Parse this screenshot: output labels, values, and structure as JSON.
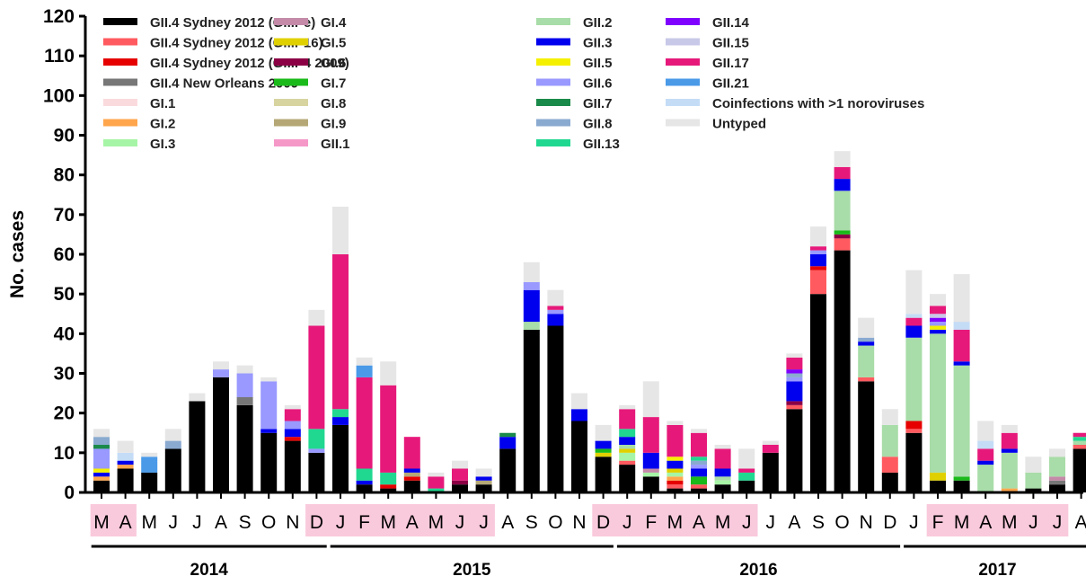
{
  "chart_data": {
    "type": "bar",
    "stacked": true,
    "ylabel": "No. cases",
    "ylim": [
      0,
      120
    ],
    "yticks": [
      0,
      10,
      20,
      30,
      40,
      50,
      60,
      70,
      80,
      90,
      100,
      110,
      120
    ],
    "legend_placement": "top-left",
    "categories": [
      "M",
      "A",
      "M",
      "J",
      "J",
      "A",
      "S",
      "O",
      "N",
      "D",
      "J",
      "F",
      "M",
      "A",
      "M",
      "J",
      "J",
      "A",
      "S",
      "O",
      "N",
      "D",
      "J",
      "F",
      "M",
      "A",
      "M",
      "J",
      "J",
      "A",
      "S",
      "O",
      "N",
      "D",
      "J",
      "F",
      "M",
      "A",
      "M",
      "J",
      "J",
      "A"
    ],
    "years": [
      {
        "label": "2014",
        "from": 0,
        "to": 9
      },
      {
        "label": "2015",
        "from": 10,
        "to": 21
      },
      {
        "label": "2016",
        "from": 22,
        "to": 33
      },
      {
        "label": "2017",
        "from": 34,
        "to": 41
      }
    ],
    "highlight_ranges": [
      [
        0,
        1
      ],
      [
        9,
        16
      ],
      [
        21,
        27
      ],
      [
        35,
        40
      ]
    ],
    "highlight_color": "#f9c9dc",
    "series": [
      {
        "name": "GII.4 Sydney 2012 (GII.Pe)",
        "color": "#000000",
        "values": [
          3,
          6,
          5,
          11,
          23,
          29,
          22,
          15,
          13,
          10,
          17,
          2,
          1,
          3,
          0,
          2,
          2,
          11,
          41,
          42,
          18,
          9,
          7,
          4,
          1,
          1,
          2,
          3,
          10,
          21,
          50,
          61,
          28,
          5,
          15,
          3,
          3,
          0,
          0,
          1,
          2,
          11
        ]
      },
      {
        "name": "GII.4 Sydney 2012 (GII.P16)",
        "color": "#ff5a5f",
        "values": [
          0,
          0,
          0,
          0,
          0,
          0,
          0,
          0,
          0,
          0,
          0,
          0,
          0,
          0,
          0,
          0,
          0,
          0,
          0,
          0,
          0,
          0,
          1,
          0,
          1,
          1,
          0,
          0,
          0,
          1,
          6,
          3,
          1,
          4,
          1,
          0,
          0,
          0,
          0,
          0,
          0,
          1
        ]
      },
      {
        "name": "GII.4 Sydney 2012 (GII.P4 2009)",
        "color": "#e60000",
        "values": [
          0,
          0,
          0,
          0,
          0,
          0,
          0,
          0,
          1,
          0,
          0,
          0,
          1,
          1,
          0,
          0,
          0,
          0,
          0,
          0,
          0,
          0,
          0,
          0,
          1,
          0,
          0,
          0,
          0,
          0,
          1,
          0,
          0,
          0,
          2,
          0,
          0,
          0,
          0,
          0,
          0,
          0
        ]
      },
      {
        "name": "GII.4 New Orleans 2009",
        "color": "#777777",
        "values": [
          0,
          0,
          0,
          0,
          0,
          0,
          2,
          0,
          0,
          0,
          0,
          0,
          0,
          0,
          0,
          0,
          0,
          0,
          0,
          0,
          0,
          0,
          0,
          0,
          0,
          0,
          0,
          0,
          0,
          0,
          0,
          0,
          0,
          0,
          0,
          0,
          0,
          0,
          0,
          0,
          1,
          0
        ]
      },
      {
        "name": "GI.1",
        "color": "#fadadd",
        "values": [
          0,
          0,
          0,
          0,
          0,
          0,
          0,
          0,
          0,
          0,
          0,
          0,
          0,
          0,
          0,
          0,
          0,
          0,
          0,
          0,
          0,
          0,
          0,
          0,
          0,
          0,
          0,
          0,
          0,
          0,
          0,
          0,
          0,
          0,
          0,
          0,
          0,
          0,
          0,
          0,
          0,
          0
        ]
      },
      {
        "name": "GI.2",
        "color": "#ffa64d",
        "values": [
          1,
          1,
          0,
          0,
          0,
          0,
          0,
          0,
          0,
          0,
          0,
          0,
          0,
          0,
          0,
          0,
          0,
          0,
          0,
          0,
          0,
          0,
          0,
          0,
          1,
          0,
          0,
          0,
          0,
          0,
          0,
          0,
          0,
          0,
          0,
          0,
          0,
          0,
          1,
          0,
          0,
          0
        ]
      },
      {
        "name": "GI.3",
        "color": "#a6f5a6",
        "values": [
          0,
          0,
          0,
          0,
          0,
          0,
          0,
          0,
          0,
          0,
          0,
          0,
          0,
          0,
          0,
          0,
          0,
          0,
          0,
          0,
          0,
          0,
          2,
          1,
          1,
          0,
          1,
          0,
          0,
          0,
          0,
          0,
          0,
          0,
          0,
          0,
          0,
          0,
          0,
          0,
          0,
          0
        ]
      },
      {
        "name": "GI.4",
        "color": "#c48aa8",
        "values": [
          0,
          0,
          0,
          0,
          0,
          0,
          0,
          0,
          0,
          0,
          0,
          0,
          0,
          0,
          0,
          0,
          0,
          0,
          0,
          0,
          0,
          0,
          0,
          1,
          0,
          0,
          0,
          0,
          0,
          0,
          0,
          0,
          0,
          0,
          0,
          0,
          0,
          0,
          0,
          0,
          1,
          0
        ]
      },
      {
        "name": "GI.5",
        "color": "#e0d000",
        "values": [
          0,
          0,
          0,
          0,
          0,
          0,
          0,
          0,
          0,
          0,
          0,
          0,
          0,
          0,
          0,
          0,
          0,
          0,
          0,
          0,
          0,
          1,
          1,
          0,
          1,
          0,
          0,
          0,
          0,
          0,
          0,
          0,
          0,
          0,
          0,
          2,
          0,
          0,
          0,
          0,
          0,
          0
        ]
      },
      {
        "name": "GI.6",
        "color": "#8b0045",
        "values": [
          0,
          0,
          0,
          0,
          0,
          0,
          0,
          0,
          0,
          0,
          0,
          0,
          0,
          0,
          0,
          1,
          0,
          0,
          0,
          0,
          0,
          0,
          0,
          0,
          0,
          0,
          0,
          0,
          0,
          1,
          0,
          1,
          0,
          0,
          0,
          0,
          0,
          0,
          0,
          0,
          0,
          0
        ]
      },
      {
        "name": "GI.7",
        "color": "#1aba1a",
        "values": [
          0,
          0,
          0,
          0,
          0,
          0,
          0,
          0,
          0,
          0,
          0,
          0,
          0,
          0,
          0,
          0,
          0,
          0,
          0,
          0,
          0,
          1,
          0,
          0,
          0,
          2,
          0,
          0,
          0,
          0,
          0,
          1,
          0,
          0,
          0,
          0,
          1,
          0,
          0,
          0,
          0,
          0
        ]
      },
      {
        "name": "GI.8",
        "color": "#d8d4a0",
        "values": [
          0,
          0,
          0,
          0,
          0,
          0,
          0,
          0,
          0,
          0,
          0,
          0,
          0,
          0,
          0,
          0,
          0,
          0,
          0,
          0,
          0,
          0,
          0,
          0,
          0,
          0,
          0,
          0,
          0,
          0,
          0,
          0,
          0,
          0,
          0,
          0,
          0,
          0,
          0,
          0,
          0,
          0
        ]
      },
      {
        "name": "GI.9",
        "color": "#b5a876",
        "values": [
          0,
          0,
          0,
          0,
          0,
          0,
          0,
          0,
          0,
          0,
          0,
          0,
          0,
          1,
          0,
          0,
          1,
          0,
          0,
          0,
          0,
          0,
          0,
          0,
          0,
          0,
          0,
          0,
          0,
          0,
          0,
          0,
          0,
          0,
          0,
          0,
          0,
          0,
          0,
          0,
          0,
          0
        ]
      },
      {
        "name": "GII.1",
        "color": "#f598c8",
        "values": [
          0,
          0,
          0,
          0,
          0,
          0,
          0,
          0,
          0,
          0,
          0,
          0,
          0,
          0,
          0,
          0,
          0,
          0,
          0,
          0,
          0,
          0,
          0,
          0,
          0,
          0,
          0,
          0,
          0,
          0,
          0,
          0,
          0,
          0,
          0,
          0,
          0,
          0,
          0,
          0,
          0,
          0
        ]
      },
      {
        "name": "GII.2",
        "color": "#a8dca8",
        "values": [
          0,
          0,
          0,
          0,
          0,
          0,
          0,
          0,
          0,
          0,
          0,
          0,
          0,
          0,
          0,
          0,
          0,
          0,
          2,
          0,
          0,
          0,
          1,
          0,
          0,
          0,
          1,
          0,
          0,
          0,
          0,
          10,
          8,
          8,
          21,
          35,
          28,
          7,
          9,
          4,
          5,
          1
        ]
      },
      {
        "name": "GII.3",
        "color": "#0000ee",
        "values": [
          1,
          1,
          0,
          0,
          0,
          0,
          0,
          1,
          2,
          0,
          2,
          1,
          0,
          1,
          0,
          0,
          1,
          3,
          8,
          3,
          3,
          2,
          2,
          4,
          2,
          2,
          2,
          0,
          0,
          5,
          3,
          3,
          1,
          0,
          3,
          1,
          1,
          1,
          1,
          0,
          0,
          0
        ]
      },
      {
        "name": "GII.5",
        "color": "#f5f000",
        "values": [
          1,
          0,
          0,
          0,
          0,
          0,
          0,
          0,
          0,
          0,
          0,
          0,
          0,
          0,
          0,
          0,
          0,
          0,
          0,
          0,
          0,
          0,
          0,
          0,
          1,
          0,
          0,
          0,
          0,
          0,
          0,
          0,
          0,
          0,
          0,
          1,
          0,
          0,
          0,
          0,
          0,
          0
        ]
      },
      {
        "name": "GII.6",
        "color": "#9999ff",
        "values": [
          5,
          0,
          0,
          0,
          0,
          2,
          6,
          12,
          2,
          1,
          0,
          0,
          0,
          0,
          0,
          0,
          0,
          0,
          2,
          1,
          0,
          0,
          0,
          0,
          0,
          1,
          0,
          0,
          0,
          1,
          1,
          0,
          0,
          0,
          0,
          1,
          0,
          0,
          0,
          0,
          0,
          0
        ]
      },
      {
        "name": "GII.7",
        "color": "#1a8a4a",
        "values": [
          1,
          0,
          0,
          0,
          0,
          0,
          0,
          0,
          0,
          0,
          0,
          0,
          0,
          0,
          0,
          0,
          0,
          1,
          0,
          0,
          0,
          0,
          0,
          0,
          0,
          0,
          0,
          0,
          0,
          0,
          0,
          0,
          0,
          0,
          0,
          0,
          0,
          0,
          0,
          0,
          0,
          0
        ]
      },
      {
        "name": "GII.8",
        "color": "#8aaad0",
        "values": [
          2,
          0,
          0,
          2,
          0,
          0,
          0,
          0,
          0,
          0,
          0,
          0,
          0,
          0,
          0,
          0,
          0,
          0,
          0,
          0,
          0,
          0,
          0,
          0,
          0,
          1,
          0,
          0,
          0,
          1,
          0,
          0,
          1,
          0,
          0,
          0,
          0,
          0,
          0,
          0,
          0,
          0
        ]
      },
      {
        "name": "GII.13",
        "color": "#20d890",
        "values": [
          0,
          0,
          0,
          0,
          0,
          0,
          0,
          0,
          0,
          5,
          2,
          3,
          3,
          0,
          1,
          0,
          0,
          0,
          0,
          0,
          0,
          0,
          2,
          0,
          0,
          1,
          0,
          2,
          0,
          0,
          0,
          0,
          0,
          0,
          0,
          0,
          0,
          0,
          0,
          0,
          0,
          1
        ]
      },
      {
        "name": "GII.14",
        "color": "#7f00ff",
        "values": [
          0,
          0,
          0,
          0,
          0,
          0,
          0,
          0,
          0,
          0,
          0,
          0,
          0,
          0,
          0,
          0,
          0,
          0,
          0,
          0,
          0,
          0,
          0,
          0,
          0,
          0,
          0,
          0,
          0,
          1,
          0,
          0,
          0,
          0,
          0,
          1,
          0,
          0,
          0,
          0,
          0,
          0
        ]
      },
      {
        "name": "GII.15",
        "color": "#c8c8e8",
        "values": [
          0,
          0,
          0,
          0,
          0,
          0,
          0,
          0,
          0,
          0,
          0,
          0,
          0,
          0,
          0,
          0,
          0,
          0,
          0,
          0,
          0,
          0,
          0,
          0,
          0,
          0,
          0,
          0,
          0,
          0,
          0,
          0,
          0,
          0,
          0,
          1,
          0,
          0,
          0,
          0,
          0,
          0
        ]
      },
      {
        "name": "GII.17",
        "color": "#e6197a",
        "values": [
          0,
          0,
          0,
          0,
          0,
          0,
          0,
          0,
          3,
          26,
          39,
          23,
          22,
          8,
          3,
          3,
          0,
          0,
          0,
          1,
          0,
          0,
          5,
          9,
          8,
          6,
          5,
          1,
          2,
          3,
          1,
          3,
          0,
          0,
          2,
          2,
          8,
          3,
          4,
          0,
          0,
          1
        ]
      },
      {
        "name": "GII.21",
        "color": "#4a9ae8",
        "values": [
          0,
          0,
          4,
          0,
          0,
          0,
          0,
          0,
          0,
          0,
          0,
          3,
          0,
          0,
          0,
          0,
          0,
          0,
          0,
          0,
          0,
          0,
          0,
          0,
          0,
          0,
          0,
          0,
          0,
          0,
          0,
          0,
          0,
          0,
          0,
          0,
          0,
          0,
          0,
          0,
          0,
          0
        ]
      },
      {
        "name": "Coinfections with >1 noroviruses",
        "color": "#c4dcf6",
        "values": [
          0,
          2,
          0,
          0,
          0,
          0,
          0,
          0,
          0,
          0,
          0,
          0,
          0,
          0,
          0,
          0,
          0,
          0,
          0,
          0,
          0,
          0,
          0,
          0,
          0,
          0,
          0,
          0,
          0,
          0,
          0,
          0,
          0,
          0,
          1,
          0,
          2,
          2,
          0,
          0,
          0,
          0
        ]
      },
      {
        "name": "Untyped",
        "color": "#e6e6e6",
        "values": [
          2,
          3,
          1,
          3,
          2,
          2,
          2,
          1,
          1,
          4,
          12,
          2,
          6,
          0,
          1,
          2,
          2,
          0,
          5,
          4,
          4,
          4,
          1,
          9,
          1,
          1,
          1,
          5,
          1,
          1,
          5,
          4,
          5,
          4,
          11,
          3,
          12,
          5,
          2,
          4,
          2,
          0
        ]
      }
    ]
  }
}
